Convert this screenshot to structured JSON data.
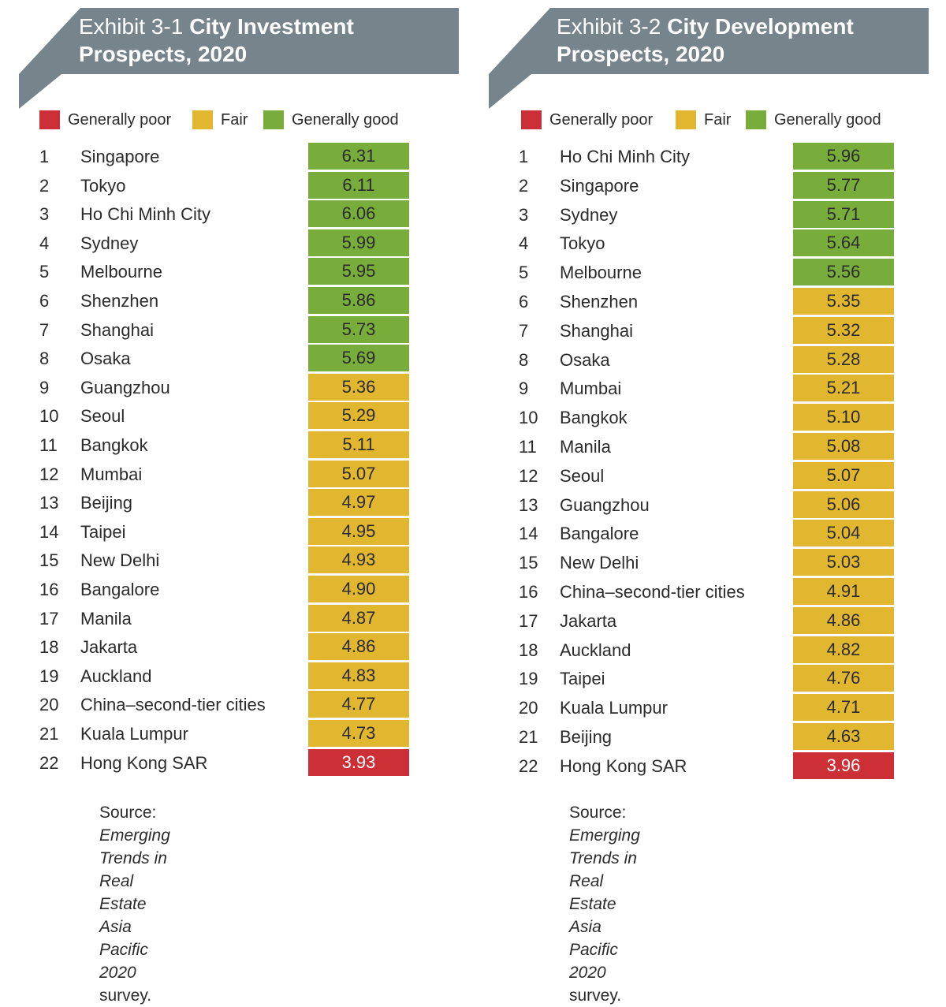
{
  "colors": {
    "banner": "#76858c",
    "poor": "#cc2f36",
    "fair": "#e2b730",
    "good": "#79ad3b"
  },
  "legend": {
    "poor": "Generally poor",
    "fair": "Fair",
    "good": "Generally good"
  },
  "chart_data": [
    {
      "type": "table",
      "exhibit": "Exhibit 3-1",
      "title_line1": "City Investment",
      "title_line2": "Prospects, 2020",
      "source_label": "Source:",
      "source_italic_1": "Emerging Trends in Real Estate",
      "source_italic_2": "Asia Pacific 2020",
      "source_suffix": "survey.",
      "rows": [
        {
          "rank": "1",
          "city": "Singapore",
          "score": "6.31",
          "rating": "good"
        },
        {
          "rank": "2",
          "city": "Tokyo",
          "score": "6.11",
          "rating": "good"
        },
        {
          "rank": "3",
          "city": "Ho Chi Minh City",
          "score": "6.06",
          "rating": "good"
        },
        {
          "rank": "4",
          "city": "Sydney",
          "score": "5.99",
          "rating": "good"
        },
        {
          "rank": "5",
          "city": "Melbourne",
          "score": "5.95",
          "rating": "good"
        },
        {
          "rank": "6",
          "city": "Shenzhen",
          "score": "5.86",
          "rating": "good"
        },
        {
          "rank": "7",
          "city": "Shanghai",
          "score": "5.73",
          "rating": "good"
        },
        {
          "rank": "8",
          "city": "Osaka",
          "score": "5.69",
          "rating": "good"
        },
        {
          "rank": "9",
          "city": "Guangzhou",
          "score": "5.36",
          "rating": "fair"
        },
        {
          "rank": "10",
          "city": "Seoul",
          "score": "5.29",
          "rating": "fair"
        },
        {
          "rank": "11",
          "city": "Bangkok",
          "score": "5.11",
          "rating": "fair"
        },
        {
          "rank": "12",
          "city": "Mumbai",
          "score": "5.07",
          "rating": "fair"
        },
        {
          "rank": "13",
          "city": "Beijing",
          "score": "4.97",
          "rating": "fair"
        },
        {
          "rank": "14",
          "city": "Taipei",
          "score": "4.95",
          "rating": "fair"
        },
        {
          "rank": "15",
          "city": "New Delhi",
          "score": "4.93",
          "rating": "fair"
        },
        {
          "rank": "16",
          "city": "Bangalore",
          "score": "4.90",
          "rating": "fair"
        },
        {
          "rank": "17",
          "city": "Manila",
          "score": "4.87",
          "rating": "fair"
        },
        {
          "rank": "18",
          "city": "Jakarta",
          "score": "4.86",
          "rating": "fair"
        },
        {
          "rank": "19",
          "city": "Auckland",
          "score": "4.83",
          "rating": "fair"
        },
        {
          "rank": "20",
          "city": "China–second-tier cities",
          "score": "4.77",
          "rating": "fair"
        },
        {
          "rank": "21",
          "city": "Kuala Lumpur",
          "score": "4.73",
          "rating": "fair"
        },
        {
          "rank": "22",
          "city": "Hong Kong SAR",
          "score": "3.93",
          "rating": "poor"
        }
      ]
    },
    {
      "type": "table",
      "exhibit": "Exhibit 3-2",
      "title_line1": "City Development",
      "title_line2": "Prospects, 2020",
      "source_label": "Source:",
      "source_italic_1": "Emerging Trends in Real Estate",
      "source_italic_2": "Asia Pacific 2020",
      "source_suffix": "survey.",
      "rows": [
        {
          "rank": "1",
          "city": "Ho Chi Minh City",
          "score": "5.96",
          "rating": "good"
        },
        {
          "rank": "2",
          "city": "Singapore",
          "score": "5.77",
          "rating": "good"
        },
        {
          "rank": "3",
          "city": "Sydney",
          "score": "5.71",
          "rating": "good"
        },
        {
          "rank": "4",
          "city": "Tokyo",
          "score": "5.64",
          "rating": "good"
        },
        {
          "rank": "5",
          "city": "Melbourne",
          "score": "5.56",
          "rating": "good"
        },
        {
          "rank": "6",
          "city": "Shenzhen",
          "score": "5.35",
          "rating": "fair"
        },
        {
          "rank": "7",
          "city": "Shanghai",
          "score": "5.32",
          "rating": "fair"
        },
        {
          "rank": "8",
          "city": "Osaka",
          "score": "5.28",
          "rating": "fair"
        },
        {
          "rank": "9",
          "city": "Mumbai",
          "score": "5.21",
          "rating": "fair"
        },
        {
          "rank": "10",
          "city": "Bangkok",
          "score": "5.10",
          "rating": "fair"
        },
        {
          "rank": "11",
          "city": "Manila",
          "score": "5.08",
          "rating": "fair"
        },
        {
          "rank": "12",
          "city": "Seoul",
          "score": "5.07",
          "rating": "fair"
        },
        {
          "rank": "13",
          "city": "Guangzhou",
          "score": "5.06",
          "rating": "fair"
        },
        {
          "rank": "14",
          "city": "Bangalore",
          "score": "5.04",
          "rating": "fair"
        },
        {
          "rank": "15",
          "city": "New Delhi",
          "score": "5.03",
          "rating": "fair"
        },
        {
          "rank": "16",
          "city": "China–second-tier cities",
          "score": "4.91",
          "rating": "fair"
        },
        {
          "rank": "17",
          "city": "Jakarta",
          "score": "4.86",
          "rating": "fair"
        },
        {
          "rank": "18",
          "city": "Auckland",
          "score": "4.82",
          "rating": "fair"
        },
        {
          "rank": "19",
          "city": "Taipei",
          "score": "4.76",
          "rating": "fair"
        },
        {
          "rank": "20",
          "city": "Kuala Lumpur",
          "score": "4.71",
          "rating": "fair"
        },
        {
          "rank": "21",
          "city": "Beijing",
          "score": "4.63",
          "rating": "fair"
        },
        {
          "rank": "22",
          "city": "Hong Kong SAR",
          "score": "3.96",
          "rating": "poor"
        }
      ]
    }
  ]
}
